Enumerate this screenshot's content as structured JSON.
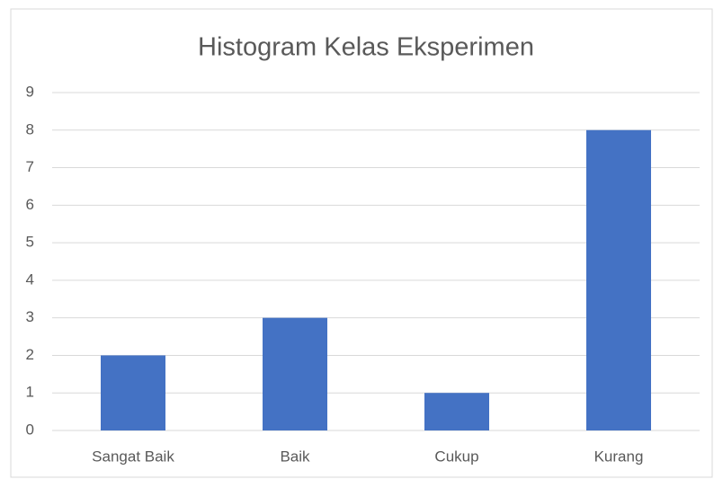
{
  "chart_data": {
    "type": "bar",
    "title": "Histogram Kelas Eksperimen",
    "categories": [
      "Sangat Baik",
      "Baik",
      "Cukup",
      "Kurang"
    ],
    "values": [
      2,
      3,
      1,
      8
    ],
    "color": "#4472c4",
    "ylim": [
      0,
      9
    ],
    "yticks": [
      0,
      1,
      2,
      3,
      4,
      5,
      6,
      7,
      8,
      9
    ],
    "grid": true
  }
}
